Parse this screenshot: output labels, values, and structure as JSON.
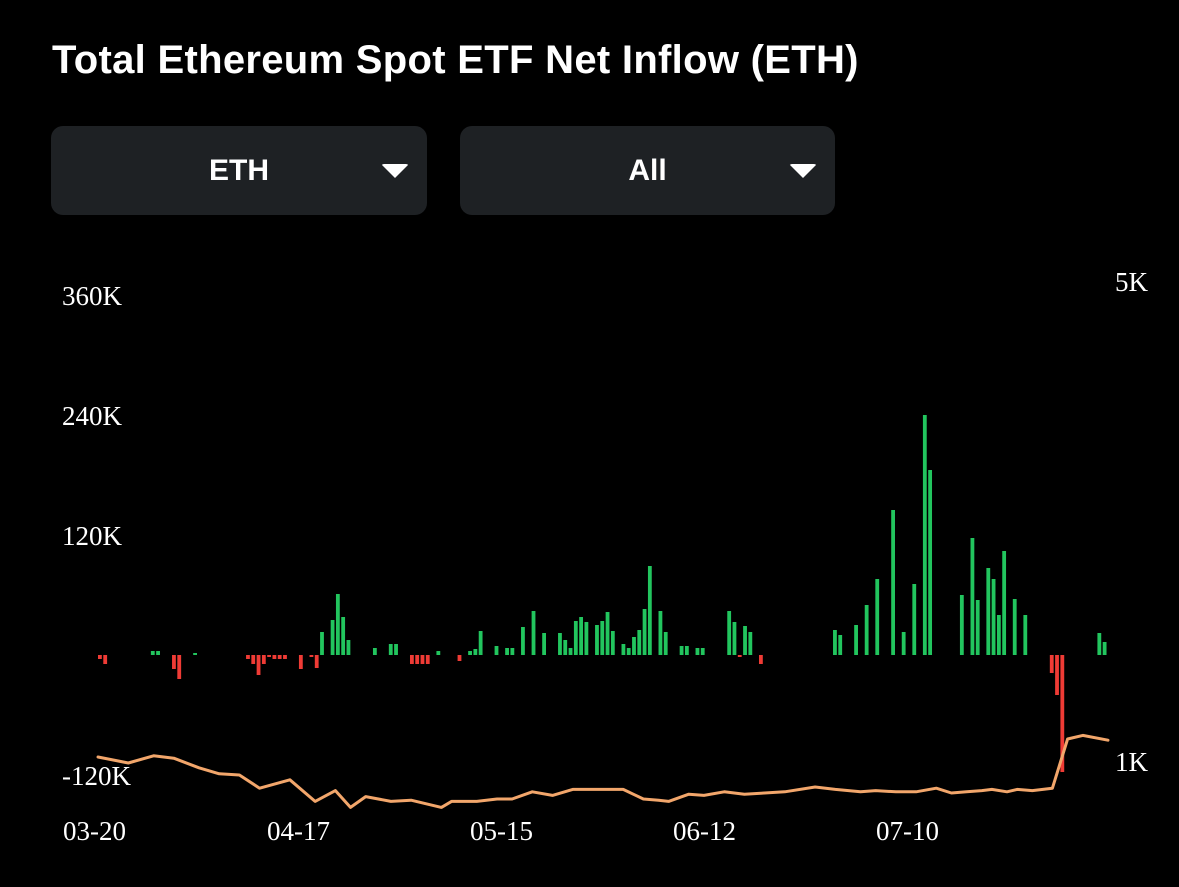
{
  "header": {
    "title": "Total Ethereum Spot ETF Net Inflow (ETH)"
  },
  "controls": {
    "asset_dropdown": {
      "selected": "ETH",
      "icon": "caret-down-icon"
    },
    "range_dropdown": {
      "selected": "All",
      "icon": "caret-down-icon"
    }
  },
  "chart_data": {
    "type": "bar",
    "title": "Total Ethereum Spot ETF Net Inflow (ETH)",
    "x_ticks": [
      "03-20",
      "04-17",
      "05-15",
      "06-12",
      "07-10"
    ],
    "y_left": {
      "ticks": [
        "360K",
        "240K",
        "120K",
        "-120K"
      ],
      "ylim": [
        -120000,
        360000
      ]
    },
    "y_right": {
      "ticks": [
        "5K",
        "1K"
      ],
      "ylim": [
        1000,
        5000
      ]
    },
    "colors": {
      "positive": "#22c55e",
      "negative": "#ef3b35",
      "line": "#f2a66b"
    },
    "grid": false,
    "legend": "none",
    "bars": [
      -4000,
      -9000,
      0,
      0,
      0,
      0,
      0,
      0,
      0,
      0,
      4000,
      4000,
      0,
      0,
      -14000,
      -24000,
      0,
      0,
      2000,
      0,
      0,
      0,
      0,
      0,
      0,
      0,
      0,
      0,
      -4000,
      -9000,
      -20000,
      -9000,
      -2000,
      -4000,
      -4000,
      -4000,
      0,
      0,
      -14000,
      0,
      -2000,
      -13000,
      23000,
      0,
      35000,
      61000,
      38000,
      15000,
      0,
      0,
      0,
      0,
      7000,
      0,
      0,
      11000,
      11000,
      0,
      0,
      -9000,
      -9000,
      -9000,
      -9000,
      0,
      4000,
      0,
      0,
      0,
      -6000,
      0,
      4000,
      6000,
      24000,
      0,
      0,
      9000,
      0,
      7000,
      7000,
      0,
      28000,
      0,
      44000,
      0,
      22000,
      0,
      0,
      22000,
      15000,
      7000,
      34000,
      38000,
      33000,
      0,
      30000,
      34000,
      43000,
      24000,
      0,
      11000,
      7000,
      18000,
      25000,
      46000,
      89000,
      0,
      44000,
      23000,
      0,
      0,
      9000,
      9000,
      0,
      7000,
      7000,
      0,
      0,
      0,
      0,
      44000,
      33000,
      -2000,
      29000,
      23000,
      0,
      -9000,
      0,
      0,
      0,
      0,
      0,
      0,
      0,
      0,
      0,
      0,
      0,
      0,
      0,
      25000,
      20000,
      0,
      0,
      30000,
      0,
      50000,
      0,
      76000,
      0,
      0,
      145000,
      0,
      23000,
      0,
      71000,
      0,
      240000,
      185000,
      0,
      0,
      0,
      0,
      0,
      60000,
      0,
      117000,
      55000,
      0,
      87000,
      76000,
      40000,
      104000,
      0,
      56000,
      0,
      40000,
      0,
      0,
      0,
      0,
      -18000,
      -40000,
      -117000,
      0,
      0,
      0,
      0,
      0,
      0,
      22000,
      13000
    ],
    "series": [
      {
        "type": "line",
        "points": [
          [
            0,
            1150
          ],
          [
            0.03,
            1100
          ],
          [
            0.055,
            1160
          ],
          [
            0.075,
            1140
          ],
          [
            0.1,
            1060
          ],
          [
            0.12,
            1010
          ],
          [
            0.14,
            1000
          ],
          [
            0.16,
            890
          ],
          [
            0.19,
            960
          ],
          [
            0.215,
            780
          ],
          [
            0.235,
            870
          ],
          [
            0.25,
            730
          ],
          [
            0.265,
            820
          ],
          [
            0.29,
            780
          ],
          [
            0.31,
            790
          ],
          [
            0.34,
            730
          ],
          [
            0.35,
            780
          ],
          [
            0.375,
            780
          ],
          [
            0.395,
            800
          ],
          [
            0.41,
            800
          ],
          [
            0.43,
            860
          ],
          [
            0.45,
            830
          ],
          [
            0.47,
            880
          ],
          [
            0.49,
            880
          ],
          [
            0.52,
            880
          ],
          [
            0.54,
            800
          ],
          [
            0.555,
            790
          ],
          [
            0.565,
            780
          ],
          [
            0.585,
            840
          ],
          [
            0.6,
            830
          ],
          [
            0.62,
            860
          ],
          [
            0.64,
            840
          ],
          [
            0.66,
            850
          ],
          [
            0.68,
            860
          ],
          [
            0.71,
            900
          ],
          [
            0.73,
            880
          ],
          [
            0.755,
            860
          ],
          [
            0.77,
            870
          ],
          [
            0.79,
            860
          ],
          [
            0.81,
            860
          ],
          [
            0.83,
            890
          ],
          [
            0.845,
            850
          ],
          [
            0.86,
            860
          ],
          [
            0.875,
            870
          ],
          [
            0.885,
            880
          ],
          [
            0.9,
            860
          ],
          [
            0.91,
            880
          ],
          [
            0.925,
            870
          ],
          [
            0.945,
            890
          ],
          [
            0.96,
            1300
          ],
          [
            0.975,
            1330
          ],
          [
            1,
            1290
          ]
        ]
      }
    ]
  }
}
